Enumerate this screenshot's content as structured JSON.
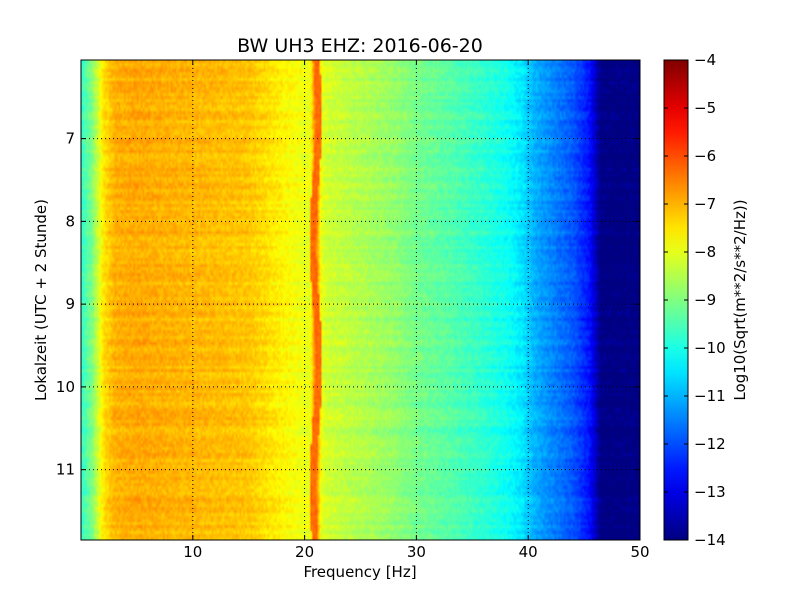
{
  "chart_data": {
    "type": "heatmap",
    "title": "BW UH3 EHZ: 2016-06-20",
    "xlabel": "Frequency [Hz]",
    "ylabel": "Lokalzeit (UTC + 2 Stunde)",
    "xlim": [
      0,
      50
    ],
    "ylim": [
      11.85,
      6.05
    ],
    "y_inverted": true,
    "x_ticks": [
      "10",
      "20",
      "30",
      "40",
      "50"
    ],
    "x_tick_values": [
      10,
      20,
      30,
      40,
      50
    ],
    "y_ticks": [
      "7",
      "8",
      "9",
      "10",
      "11"
    ],
    "y_tick_values": [
      7,
      8,
      9,
      10,
      11
    ],
    "grid": true,
    "colorscale": "jet",
    "colorbar": {
      "label": "Log10(Sqrt(m**2/s**2/Hz))",
      "range": [
        -14,
        -4
      ],
      "ticks": [
        "−4",
        "−5",
        "−6",
        "−7",
        "−8",
        "−9",
        "−10",
        "−11",
        "−12",
        "−13",
        "−14"
      ],
      "tick_values": [
        -4,
        -5,
        -6,
        -7,
        -8,
        -9,
        -10,
        -11,
        -12,
        -13,
        -14
      ]
    },
    "spectral_profile": {
      "frequency_hz": [
        0,
        1,
        2,
        3,
        5,
        8,
        12,
        15,
        17,
        19,
        20.5,
        21,
        21.5,
        22,
        25,
        28,
        30,
        33,
        36,
        38,
        39.5,
        40.5,
        42,
        44,
        45.5,
        46.5,
        50
      ],
      "log10_amplitude": [
        -9.8,
        -9.0,
        -7.5,
        -7.0,
        -6.9,
        -7.0,
        -7.1,
        -7.2,
        -7.5,
        -7.8,
        -8.0,
        -6.2,
        -8.0,
        -8.2,
        -8.5,
        -8.8,
        -9.1,
        -9.4,
        -9.8,
        -10.1,
        -10.5,
        -11.0,
        -11.4,
        -11.9,
        -12.6,
        -14.0,
        -14.0
      ]
    },
    "spectral_line_hz": 21
  }
}
